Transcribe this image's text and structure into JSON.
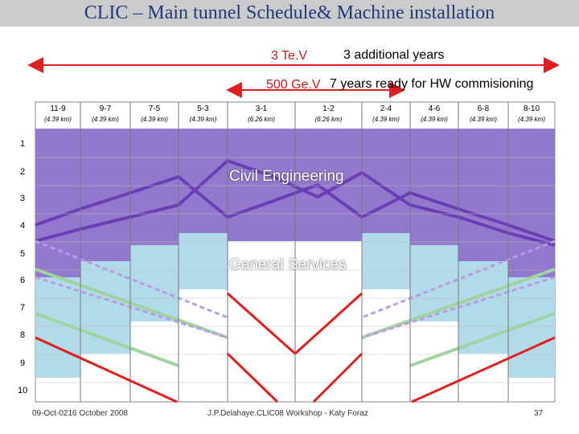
{
  "slide": {
    "title": "CLIC – Main tunnel Schedule& Machine installation",
    "energy_3tev": "3 Te.V",
    "additional_years": "3 additional years",
    "energy_500gev": "500 Ge.V",
    "years_ready": "7 years ready for HW commisioning"
  },
  "segments": [
    {
      "name": "11-9",
      "length": "(4.39 km)"
    },
    {
      "name": "9-7",
      "length": "(4.39 km)"
    },
    {
      "name": "7-5",
      "length": "(4.39 km)"
    },
    {
      "name": "5-3",
      "length": "(4.39 km)"
    },
    {
      "name": "3-1",
      "length": "(6.26 km)"
    },
    {
      "name": "1-2",
      "length": "(6.26 km)"
    },
    {
      "name": "2-4",
      "length": "(4.39 km)"
    },
    {
      "name": "4-6",
      "length": "(4.39 km)"
    },
    {
      "name": "6-8",
      "length": "(4.39 km)"
    },
    {
      "name": "8-10",
      "length": "(4.39 km)"
    }
  ],
  "years": [
    "1",
    "2",
    "3",
    "4",
    "5",
    "6",
    "7",
    "8",
    "9",
    "10"
  ],
  "bands": {
    "civil": "Civil Engineering",
    "services": "General Services"
  },
  "colors": {
    "civil": "#8a6ec9",
    "civil_dark": "#6a3fb5",
    "services": "#aad7e8",
    "install_green": "#9fd39f",
    "red_arrow": "#e02020",
    "title": "#1f3a7a"
  },
  "footer": {
    "date": "09-Oct-0216 October 2008",
    "author": "J.P.Delahaye.CLIC08 Workshop - Katy Foraz",
    "page": "37"
  }
}
